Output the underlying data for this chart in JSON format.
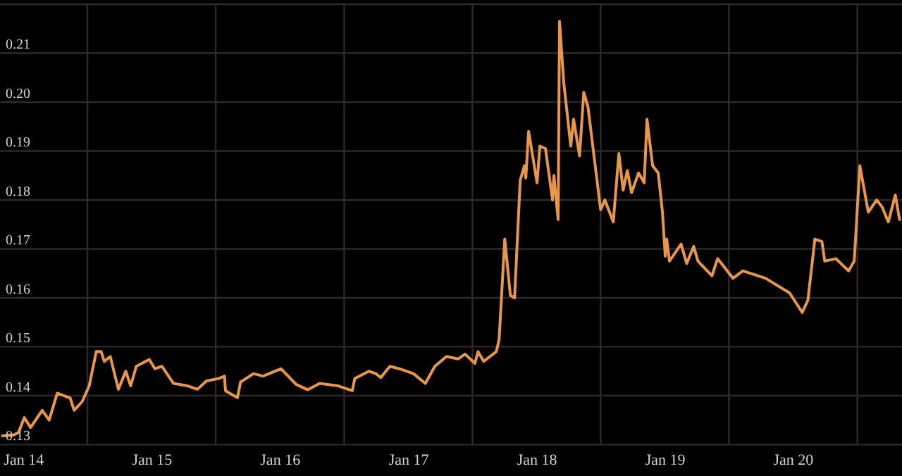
{
  "chart_data": {
    "type": "line",
    "x": [
      "2013-11-01",
      "2013-12-04",
      "2013-12-17",
      "2014-01-02",
      "2014-01-20",
      "2014-02-22",
      "2014-03-14",
      "2014-04-06",
      "2014-05-13",
      "2014-05-24",
      "2014-06-16",
      "2014-07-06",
      "2014-07-26",
      "2014-08-09",
      "2014-08-18",
      "2014-09-04",
      "2014-09-27",
      "2014-10-18",
      "2014-11-01",
      "2014-11-17",
      "2014-12-24",
      "2015-01-09",
      "2015-01-29",
      "2015-03-03",
      "2015-04-13",
      "2015-05-10",
      "2015-06-05",
      "2015-07-09",
      "2015-07-26",
      "2015-07-29",
      "2015-09-01",
      "2015-09-10",
      "2015-10-17",
      "2015-11-13",
      "2016-01-03",
      "2016-02-15",
      "2016-03-19",
      "2016-04-22",
      "2016-06-14",
      "2016-07-24",
      "2016-07-31",
      "2016-09-09",
      "2016-09-29",
      "2016-10-13",
      "2016-11-08",
      "2016-12-05",
      "2017-01-14",
      "2017-02-17",
      "2017-03-16",
      "2017-04-18",
      "2017-05-21",
      "2017-06-10",
      "2017-07-08",
      "2017-07-17",
      "2017-08-02",
      "2017-09-07",
      "2017-09-15",
      "2017-10-01",
      "2017-10-17",
      "2017-10-29",
      "2017-11-14",
      "2017-11-26",
      "2017-11-30",
      "2017-12-08",
      "2018-01-01",
      "2018-01-09",
      "2018-01-25",
      "2018-02-14",
      "2018-02-18",
      "2018-03-02",
      "2018-03-06",
      "2018-03-18",
      "2018-04-07",
      "2018-04-15",
      "2018-05-02",
      "2018-05-14",
      "2018-05-26",
      "2018-07-01",
      "2018-07-13",
      "2018-08-06",
      "2018-08-22",
      "2018-09-03",
      "2018-09-15",
      "2018-09-27",
      "2018-10-17",
      "2018-11-02",
      "2018-11-10",
      "2018-11-26",
      "2018-12-12",
      "2018-12-24",
      "2019-01-01",
      "2019-01-05",
      "2019-01-13",
      "2019-02-15",
      "2019-03-03",
      "2019-03-23",
      "2019-04-04",
      "2019-05-14",
      "2019-05-30",
      "2019-07-13",
      "2019-08-10",
      "2019-10-13",
      "2019-12-21",
      "2020-01-26",
      "2020-02-11",
      "2020-03-02",
      "2020-03-22",
      "2020-03-30",
      "2020-05-01",
      "2020-06-06",
      "2020-06-22",
      "2020-07-08",
      "2020-08-01",
      "2020-08-25",
      "2020-09-10",
      "2020-09-27",
      "2020-10-17",
      "2020-10-29"
    ],
    "series": [
      {
        "color": "#e8964a",
        "values": [
          0.1318,
          0.132,
          0.1325,
          0.1355,
          0.1335,
          0.137,
          0.135,
          0.1405,
          0.1395,
          0.137,
          0.1388,
          0.142,
          0.149,
          0.149,
          0.147,
          0.148,
          0.1413,
          0.145,
          0.142,
          0.146,
          0.1474,
          0.1455,
          0.146,
          0.1425,
          0.142,
          0.1413,
          0.143,
          0.1435,
          0.144,
          0.141,
          0.1396,
          0.1428,
          0.1445,
          0.144,
          0.1455,
          0.1423,
          0.1412,
          0.1425,
          0.142,
          0.141,
          0.1435,
          0.145,
          0.1445,
          0.1437,
          0.146,
          0.1455,
          0.1445,
          0.1425,
          0.146,
          0.148,
          0.1475,
          0.1485,
          0.1466,
          0.149,
          0.147,
          0.149,
          0.1515,
          0.172,
          0.1605,
          0.16,
          0.184,
          0.187,
          0.1845,
          0.194,
          0.1835,
          0.191,
          0.1905,
          0.18,
          0.185,
          0.176,
          0.2165,
          0.204,
          0.191,
          0.1965,
          0.189,
          0.202,
          0.199,
          0.178,
          0.18,
          0.1755,
          0.1895,
          0.182,
          0.186,
          0.1815,
          0.1855,
          0.1835,
          0.1965,
          0.187,
          0.1855,
          0.1775,
          0.1685,
          0.172,
          0.1675,
          0.171,
          0.167,
          0.1705,
          0.1675,
          0.1645,
          0.168,
          0.164,
          0.1655,
          0.164,
          0.161,
          0.157,
          0.1595,
          0.172,
          0.1715,
          0.1675,
          0.168,
          0.1655,
          0.1675,
          0.187,
          0.1775,
          0.18,
          0.1785,
          0.1755,
          0.181,
          0.176
        ]
      }
    ],
    "xlim": [
      "2013-10-25",
      "2020-11-05"
    ],
    "xticks": [
      {
        "value": "2014-01-01",
        "label": "Jan 14"
      },
      {
        "value": "2014-07-01",
        "label": null
      },
      {
        "value": "2015-01-01",
        "label": "Jan 15"
      },
      {
        "value": "2015-07-01",
        "label": null
      },
      {
        "value": "2016-01-01",
        "label": "Jan 16"
      },
      {
        "value": "2016-07-01",
        "label": null
      },
      {
        "value": "2017-01-01",
        "label": "Jan 17"
      },
      {
        "value": "2017-07-01",
        "label": null
      },
      {
        "value": "2018-01-01",
        "label": "Jan 18"
      },
      {
        "value": "2018-07-01",
        "label": null
      },
      {
        "value": "2019-01-01",
        "label": "Jan 19"
      },
      {
        "value": "2019-07-01",
        "label": null
      },
      {
        "value": "2020-01-01",
        "label": "Jan 20"
      },
      {
        "value": "2020-07-01",
        "label": null
      }
    ],
    "ylim": [
      0.13,
      0.22
    ],
    "yticks": [
      0.13,
      0.14,
      0.15,
      0.16,
      0.17,
      0.18,
      0.19,
      {
        "value": 0.2,
        "label": "0.20"
      },
      0.21,
      {
        "value": 0.22,
        "label": null
      }
    ],
    "grid": true,
    "line_style": "solid"
  }
}
